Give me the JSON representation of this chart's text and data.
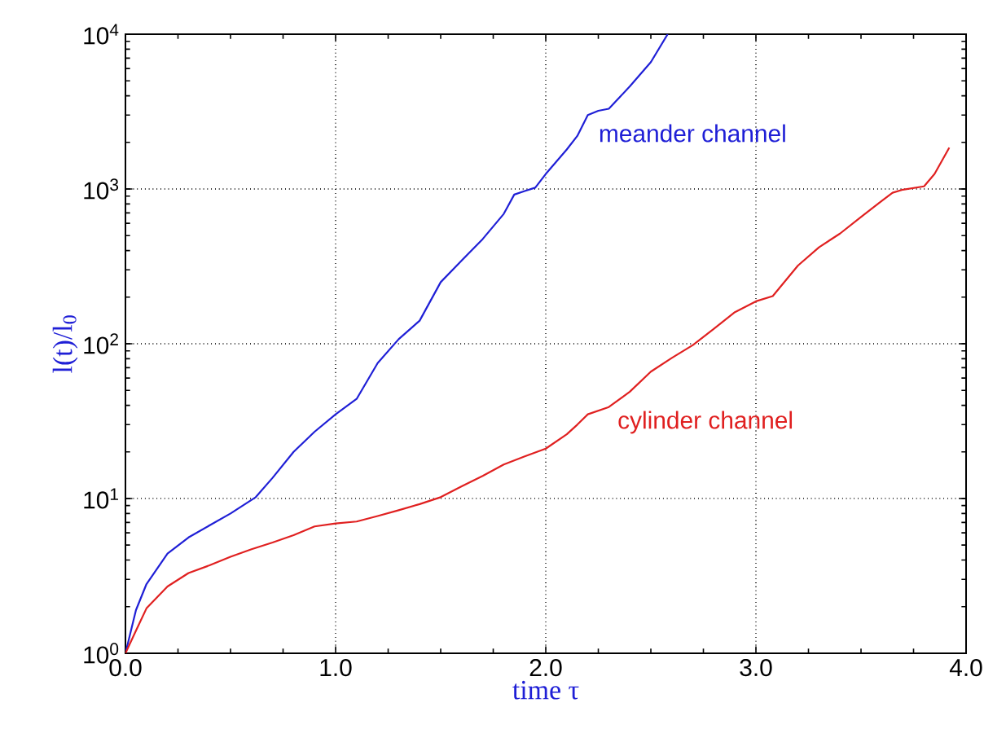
{
  "chart_data": {
    "type": "line",
    "xlabel": "time τ",
    "ylabel": "l(t)/l$_{0}$",
    "x": [
      0,
      0.05,
      0.1,
      0.2,
      0.3,
      0.4,
      0.5,
      0.62,
      0.7,
      0.8,
      0.9,
      1.0,
      1.1,
      1.2,
      1.3,
      1.4,
      1.5,
      1.6,
      1.7,
      1.8,
      1.85,
      1.9,
      1.95,
      2.0,
      2.1,
      2.15,
      2.2,
      2.25,
      2.3,
      2.4,
      2.5,
      2.58
    ],
    "series": [
      {
        "color": "#1f1fd6",
        "values": [
          1,
          1.9,
          2.8,
          4.4,
          5.6,
          6.7,
          8.0,
          10.2,
          13.6,
          20,
          27,
          35,
          44,
          75,
          107,
          141,
          250,
          345,
          475,
          690,
          920,
          970,
          1020,
          1250,
          1800,
          2200,
          3000,
          3200,
          3300,
          4600,
          6600,
          10000
        ]
      },
      {
        "color": "#e02020",
        "x": [
          0,
          0.05,
          0.1,
          0.2,
          0.3,
          0.4,
          0.5,
          0.6,
          0.7,
          0.8,
          0.9,
          1.0,
          1.1,
          1.2,
          1.3,
          1.4,
          1.5,
          1.6,
          1.7,
          1.8,
          1.9,
          2.0,
          2.1,
          2.15,
          2.2,
          2.3,
          2.4,
          2.5,
          2.6,
          2.7,
          2.8,
          2.9,
          3.0,
          3.08,
          3.2,
          3.3,
          3.4,
          3.5,
          3.6,
          3.65,
          3.7,
          3.8,
          3.85,
          3.92
        ],
        "values": [
          1,
          1.4,
          1.95,
          2.7,
          3.3,
          3.7,
          4.2,
          4.7,
          5.2,
          5.8,
          6.6,
          6.9,
          7.1,
          7.7,
          8.4,
          9.2,
          10.2,
          12,
          14,
          16.6,
          18.7,
          21,
          26,
          30,
          35,
          39,
          49,
          66,
          81,
          98,
          125,
          160,
          188,
          203,
          320,
          420,
          515,
          660,
          840,
          945,
          990,
          1040,
          1250,
          1850
        ]
      }
    ],
    "annotations": [
      "meander channel",
      "cylinder channel"
    ],
    "xlim": [
      0,
      4
    ],
    "ylim": [
      1,
      10000
    ],
    "xticks": [
      {
        "value": 0,
        "label": "0.0"
      },
      {
        "value": 1,
        "label": "1.0"
      },
      {
        "value": 2,
        "label": "2.0"
      },
      {
        "value": 3,
        "label": "3.0"
      },
      {
        "value": 4,
        "label": "4.0"
      }
    ],
    "yticks": [
      {
        "value": 1,
        "label": "10$^{0}$"
      },
      {
        "value": 10,
        "label": "10$^{1}$"
      },
      {
        "value": 100,
        "label": "10$^{2}$"
      },
      {
        "value": 1000,
        "label": "10$^{3}$"
      },
      {
        "value": 10000,
        "label": "10$^{4}$"
      }
    ],
    "log": "y",
    "grid": true,
    "marker": "none",
    "line_style": "solid"
  }
}
